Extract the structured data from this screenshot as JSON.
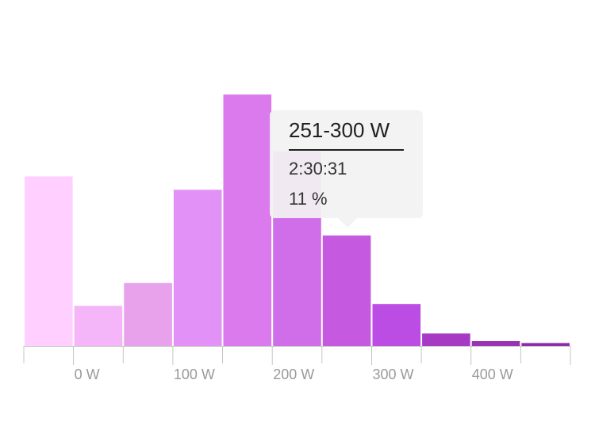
{
  "chart_data": {
    "type": "bar",
    "title": "",
    "xlabel": "",
    "ylabel": "",
    "bins": [
      "<0 W",
      "0-50 W",
      "51-100 W",
      "101-150 W",
      "151-200 W",
      "201-250 W",
      "251-300 W",
      "301-350 W",
      "351-400 W",
      "401-450 W",
      "451-500 W"
    ],
    "values": [
      8.9,
      2.1,
      3.3,
      8.2,
      13.2,
      10.2,
      5.8,
      2.2,
      0.65,
      0.25,
      0.15
    ],
    "colors": [
      "#ffd0ff",
      "#f4b6f8",
      "#e8a2ec",
      "#e291f6",
      "#da7aec",
      "#cf6ee8",
      "#c55ae0",
      "#bb4ce4",
      "#a63ac4",
      "#9a32b6",
      "#8c2ca6"
    ],
    "x_ticks": [
      "0 W",
      "100 W",
      "200 W",
      "300 W",
      "400 W"
    ],
    "ylim": [
      0,
      15
    ],
    "grid": false,
    "legend": "none"
  },
  "tooltip": {
    "title": "251-300 W",
    "time": "2:30:31",
    "percent": "11 %"
  }
}
